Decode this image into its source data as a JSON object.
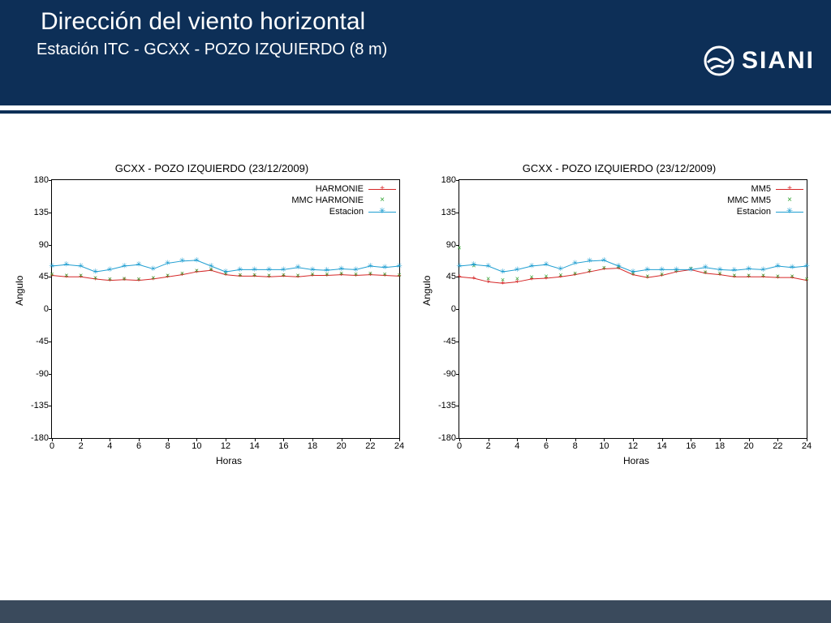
{
  "header": {
    "title": "Dirección del viento horizontal",
    "subtitle": "Estación ITC - GCXX - POZO IZQUIERDO (8 m)",
    "logo_text": "SIANI",
    "bg_color": "#0d2f57",
    "fg_color": "#ffffff"
  },
  "footer": {
    "bg_color": "#3a4a5c"
  },
  "charts": [
    {
      "title": "GCXX - POZO IZQUIERDO (23/12/2009)",
      "xlabel": "Horas",
      "ylabel": "Angulo",
      "xlim": [
        0,
        24
      ],
      "xtick_step": 2,
      "ylim": [
        -180,
        180
      ],
      "ytick_step": 45,
      "plot_border": "#000000",
      "series": [
        {
          "label": "HARMONIE",
          "color": "#d62728",
          "marker": "+",
          "line": true,
          "x": [
            0,
            1,
            2,
            3,
            4,
            5,
            6,
            7,
            8,
            9,
            10,
            11,
            12,
            13,
            14,
            15,
            16,
            17,
            18,
            19,
            20,
            21,
            22,
            23,
            24
          ],
          "y": [
            47,
            45,
            45,
            42,
            40,
            41,
            40,
            42,
            45,
            48,
            52,
            54,
            48,
            46,
            46,
            45,
            46,
            45,
            47,
            47,
            48,
            47,
            48,
            47,
            46
          ]
        },
        {
          "label": "MMC HARMONIE",
          "color": "#2ca02c",
          "marker": "×",
          "line": false,
          "x": [
            0,
            1,
            2,
            3,
            4,
            5,
            6,
            7,
            8,
            9,
            10,
            11,
            12,
            13,
            14,
            15,
            16,
            17,
            18,
            19,
            20,
            21,
            22,
            23,
            24
          ],
          "y": [
            48,
            46,
            46,
            43,
            41,
            42,
            41,
            43,
            46,
            49,
            53,
            55,
            49,
            47,
            47,
            46,
            47,
            46,
            48,
            48,
            49,
            48,
            49,
            48,
            47
          ]
        },
        {
          "label": "Estacion",
          "color": "#1f9ed1",
          "marker": "✳",
          "line": true,
          "x": [
            0,
            1,
            2,
            3,
            4,
            5,
            6,
            7,
            8,
            9,
            10,
            11,
            12,
            13,
            14,
            15,
            16,
            17,
            18,
            19,
            20,
            21,
            22,
            23,
            24
          ],
          "y": [
            60,
            62,
            60,
            52,
            55,
            60,
            62,
            56,
            64,
            67,
            68,
            60,
            52,
            55,
            55,
            55,
            55,
            58,
            55,
            54,
            56,
            55,
            60,
            58,
            60
          ]
        }
      ]
    },
    {
      "title": "GCXX - POZO IZQUIERDO (23/12/2009)",
      "xlabel": "Horas",
      "ylabel": "Angulo",
      "xlim": [
        0,
        24
      ],
      "xtick_step": 2,
      "ylim": [
        -180,
        180
      ],
      "ytick_step": 45,
      "plot_border": "#000000",
      "series": [
        {
          "label": "MM5",
          "color": "#d62728",
          "marker": "+",
          "line": true,
          "x": [
            0,
            1,
            2,
            3,
            4,
            5,
            6,
            7,
            8,
            9,
            10,
            11,
            12,
            13,
            14,
            15,
            16,
            17,
            18,
            19,
            20,
            21,
            22,
            23,
            24
          ],
          "y": [
            45,
            43,
            38,
            36,
            38,
            42,
            43,
            45,
            48,
            52,
            56,
            57,
            48,
            44,
            47,
            52,
            55,
            50,
            48,
            45,
            45,
            45,
            44,
            44,
            40
          ]
        },
        {
          "label": "MMC MM5",
          "color": "#2ca02c",
          "marker": "×",
          "line": false,
          "x": [
            0,
            1,
            2,
            3,
            4,
            5,
            6,
            7,
            8,
            9,
            10,
            11,
            12,
            13,
            14,
            15,
            16,
            17,
            18,
            19,
            20,
            21,
            22,
            23,
            24
          ],
          "y": [
            85,
            60,
            42,
            40,
            42,
            44,
            45,
            47,
            49,
            53,
            57,
            58,
            49,
            45,
            48,
            53,
            56,
            51,
            49,
            46,
            46,
            46,
            45,
            45,
            41
          ]
        },
        {
          "label": "Estacion",
          "color": "#1f9ed1",
          "marker": "✳",
          "line": true,
          "x": [
            0,
            1,
            2,
            3,
            4,
            5,
            6,
            7,
            8,
            9,
            10,
            11,
            12,
            13,
            14,
            15,
            16,
            17,
            18,
            19,
            20,
            21,
            22,
            23,
            24
          ],
          "y": [
            60,
            62,
            60,
            52,
            55,
            60,
            62,
            56,
            64,
            67,
            68,
            60,
            52,
            55,
            55,
            55,
            55,
            58,
            55,
            54,
            56,
            55,
            60,
            58,
            60
          ]
        }
      ]
    }
  ]
}
